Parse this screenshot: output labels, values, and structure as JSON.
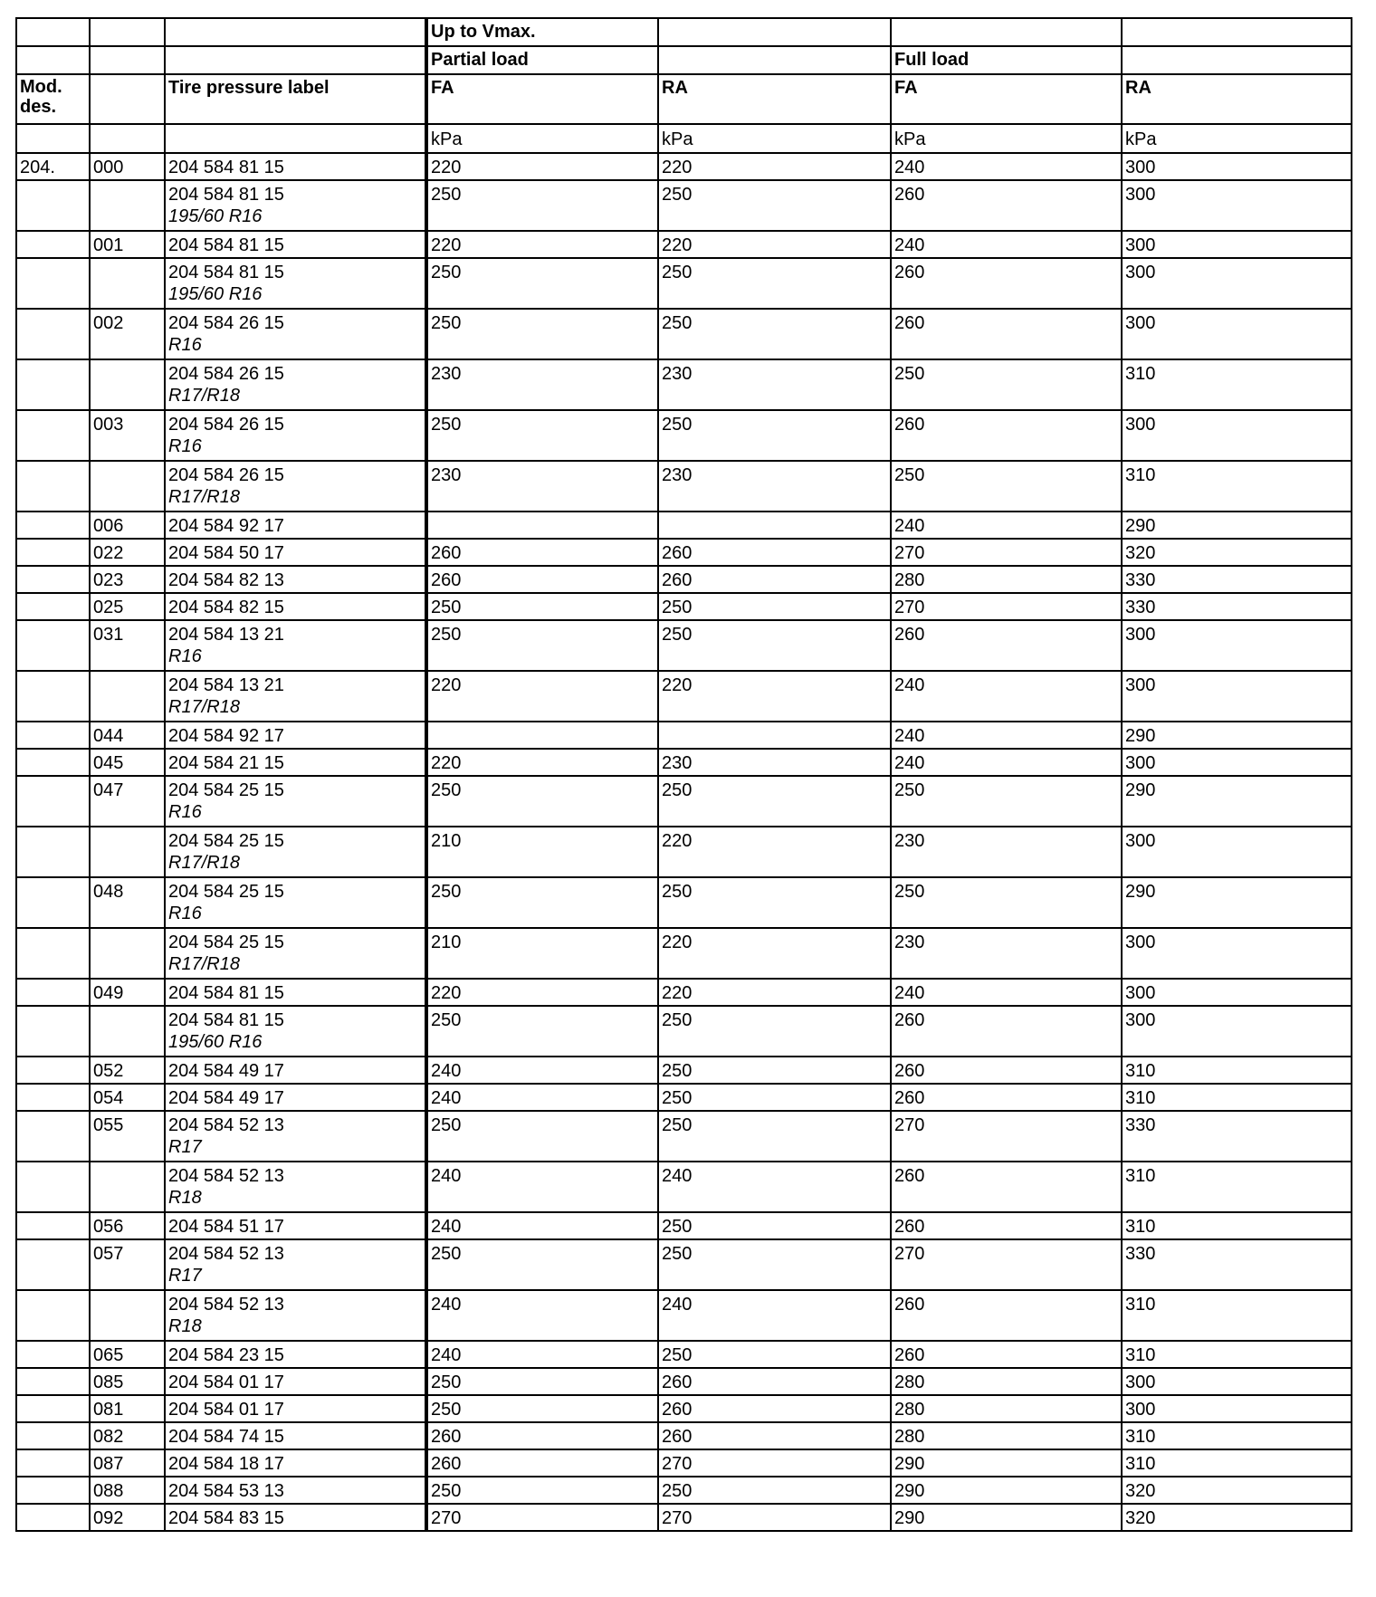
{
  "header": {
    "speed": "Up to Vmax.",
    "partial_load": "Partial load",
    "full_load": "Full load",
    "mod_des": "Mod. des.",
    "label_col": "Tire pressure label",
    "fa": "FA",
    "ra": "RA",
    "unit": "kPa"
  },
  "rows": [
    {
      "mod": "204.",
      "code": "000",
      "label": "204 584 81 15",
      "sub": "",
      "fa1": "220",
      "ra1": "220",
      "fa2": "240",
      "ra2": "300"
    },
    {
      "mod": "",
      "code": "",
      "label": "204 584 81 15",
      "sub": "195/60 R16",
      "fa1": "250",
      "ra1": "250",
      "fa2": "260",
      "ra2": "300"
    },
    {
      "mod": "",
      "code": "001",
      "label": "204 584 81 15",
      "sub": "",
      "fa1": "220",
      "ra1": "220",
      "fa2": "240",
      "ra2": "300"
    },
    {
      "mod": "",
      "code": "",
      "label": "204 584 81 15",
      "sub": "195/60 R16",
      "fa1": "250",
      "ra1": "250",
      "fa2": "260",
      "ra2": "300"
    },
    {
      "mod": "",
      "code": "002",
      "label": "204 584 26 15",
      "sub": "R16",
      "fa1": "250",
      "ra1": "250",
      "fa2": "260",
      "ra2": "300"
    },
    {
      "mod": "",
      "code": "",
      "label": "204 584 26 15",
      "sub": "R17/R18",
      "fa1": "230",
      "ra1": "230",
      "fa2": "250",
      "ra2": "310"
    },
    {
      "mod": "",
      "code": "003",
      "label": "204 584 26 15",
      "sub": "R16",
      "fa1": "250",
      "ra1": "250",
      "fa2": "260",
      "ra2": "300"
    },
    {
      "mod": "",
      "code": "",
      "label": "204 584 26 15",
      "sub": "R17/R18",
      "fa1": "230",
      "ra1": "230",
      "fa2": "250",
      "ra2": "310"
    },
    {
      "mod": "",
      "code": "006",
      "label": "204 584 92 17",
      "sub": "",
      "fa1": "",
      "ra1": "",
      "fa2": "240",
      "ra2": "290"
    },
    {
      "mod": "",
      "code": "022",
      "label": "204 584 50 17",
      "sub": "",
      "fa1": "260",
      "ra1": "260",
      "fa2": "270",
      "ra2": "320"
    },
    {
      "mod": "",
      "code": "023",
      "label": "204 584 82 13",
      "sub": "",
      "fa1": "260",
      "ra1": "260",
      "fa2": "280",
      "ra2": "330"
    },
    {
      "mod": "",
      "code": "025",
      "label": "204 584 82 15",
      "sub": "",
      "fa1": "250",
      "ra1": "250",
      "fa2": "270",
      "ra2": "330"
    },
    {
      "mod": "",
      "code": "031",
      "label": "204 584 13 21",
      "sub": "R16",
      "fa1": "250",
      "ra1": "250",
      "fa2": "260",
      "ra2": "300"
    },
    {
      "mod": "",
      "code": "",
      "label": "204 584 13 21",
      "sub": "R17/R18",
      "fa1": "220",
      "ra1": "220",
      "fa2": "240",
      "ra2": "300"
    },
    {
      "mod": "",
      "code": "044",
      "label": "204 584 92 17",
      "sub": "",
      "fa1": "",
      "ra1": "",
      "fa2": "240",
      "ra2": "290"
    },
    {
      "mod": "",
      "code": "045",
      "label": "204 584 21 15",
      "sub": "",
      "fa1": "220",
      "ra1": "230",
      "fa2": "240",
      "ra2": "300"
    },
    {
      "mod": "",
      "code": "047",
      "label": "204 584 25 15",
      "sub": "R16",
      "fa1": "250",
      "ra1": "250",
      "fa2": "250",
      "ra2": "290"
    },
    {
      "mod": "",
      "code": "",
      "label": "204 584 25 15",
      "sub": "R17/R18",
      "fa1": "210",
      "ra1": "220",
      "fa2": "230",
      "ra2": "300"
    },
    {
      "mod": "",
      "code": "048",
      "label": "204 584 25 15",
      "sub": "R16",
      "fa1": "250",
      "ra1": "250",
      "fa2": "250",
      "ra2": "290"
    },
    {
      "mod": "",
      "code": "",
      "label": "204 584 25 15",
      "sub": "R17/R18",
      "fa1": "210",
      "ra1": "220",
      "fa2": "230",
      "ra2": "300"
    },
    {
      "mod": "",
      "code": "049",
      "label": "204 584 81 15",
      "sub": "",
      "fa1": "220",
      "ra1": "220",
      "fa2": "240",
      "ra2": "300"
    },
    {
      "mod": "",
      "code": "",
      "label": "204 584 81 15",
      "sub": "195/60 R16",
      "fa1": "250",
      "ra1": "250",
      "fa2": "260",
      "ra2": "300"
    },
    {
      "mod": "",
      "code": "052",
      "label": "204 584 49 17",
      "sub": "",
      "fa1": "240",
      "ra1": "250",
      "fa2": "260",
      "ra2": "310"
    },
    {
      "mod": "",
      "code": "054",
      "label": "204 584 49 17",
      "sub": "",
      "fa1": "240",
      "ra1": "250",
      "fa2": "260",
      "ra2": "310"
    },
    {
      "mod": "",
      "code": "055",
      "label": "204 584 52 13",
      "sub": "R17",
      "fa1": "250",
      "ra1": "250",
      "fa2": "270",
      "ra2": "330"
    },
    {
      "mod": "",
      "code": "",
      "label": "204 584 52 13",
      "sub": "R18",
      "fa1": "240",
      "ra1": "240",
      "fa2": "260",
      "ra2": "310"
    },
    {
      "mod": "",
      "code": "056",
      "label": "204 584 51 17",
      "sub": "",
      "fa1": "240",
      "ra1": "250",
      "fa2": "260",
      "ra2": "310"
    },
    {
      "mod": "",
      "code": "057",
      "label": "204 584 52 13",
      "sub": "R17",
      "fa1": "250",
      "ra1": "250",
      "fa2": "270",
      "ra2": "330"
    },
    {
      "mod": "",
      "code": "",
      "label": "204 584 52 13",
      "sub": "R18",
      "fa1": "240",
      "ra1": "240",
      "fa2": "260",
      "ra2": "310"
    },
    {
      "mod": "",
      "code": "065",
      "label": "204 584 23 15",
      "sub": "",
      "fa1": "240",
      "ra1": "250",
      "fa2": "260",
      "ra2": "310"
    },
    {
      "mod": "",
      "code": "085",
      "label": "204 584 01 17",
      "sub": "",
      "fa1": "250",
      "ra1": "260",
      "fa2": "280",
      "ra2": "300"
    },
    {
      "mod": "",
      "code": "081",
      "label": "204 584 01 17",
      "sub": "",
      "fa1": "250",
      "ra1": "260",
      "fa2": "280",
      "ra2": "300"
    },
    {
      "mod": "",
      "code": "082",
      "label": "204 584 74 15",
      "sub": "",
      "fa1": "260",
      "ra1": "260",
      "fa2": "280",
      "ra2": "310"
    },
    {
      "mod": "",
      "code": "087",
      "label": "204 584 18 17",
      "sub": "",
      "fa1": "260",
      "ra1": "270",
      "fa2": "290",
      "ra2": "310"
    },
    {
      "mod": "",
      "code": "088",
      "label": "204 584 53 13",
      "sub": "",
      "fa1": "250",
      "ra1": "250",
      "fa2": "290",
      "ra2": "320"
    },
    {
      "mod": "",
      "code": "092",
      "label": "204 584 83 15",
      "sub": "",
      "fa1": "270",
      "ra1": "270",
      "fa2": "290",
      "ra2": "320"
    }
  ]
}
